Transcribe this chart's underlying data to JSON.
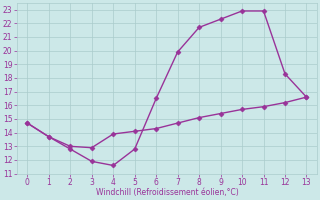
{
  "line1_x": [
    0,
    1,
    2,
    3,
    4,
    5,
    6,
    7,
    8,
    9,
    10,
    11,
    12,
    13
  ],
  "line1_y": [
    14.7,
    13.7,
    12.8,
    11.9,
    11.6,
    12.8,
    16.5,
    19.9,
    21.7,
    22.3,
    22.9,
    22.9,
    18.3,
    16.6
  ],
  "line2_x": [
    0,
    1,
    2,
    3,
    4,
    5,
    6,
    7,
    8,
    9,
    10,
    11,
    12,
    13
  ],
  "line2_y": [
    14.7,
    13.7,
    13.0,
    12.9,
    13.9,
    14.1,
    14.3,
    14.7,
    15.1,
    15.4,
    15.7,
    15.9,
    16.2,
    16.6
  ],
  "line_color": "#993399",
  "bg_color": "#cce8e8",
  "grid_color": "#aacccc",
  "xlabel": "Windchill (Refroidissement éolien,°C)",
  "xlabel_color": "#993399",
  "tick_color": "#993399",
  "xlim": [
    -0.5,
    13.5
  ],
  "ylim": [
    11,
    23.5
  ],
  "xticks": [
    0,
    1,
    2,
    3,
    4,
    5,
    6,
    7,
    8,
    9,
    10,
    11,
    12,
    13
  ],
  "yticks": [
    11,
    12,
    13,
    14,
    15,
    16,
    17,
    18,
    19,
    20,
    21,
    22,
    23
  ],
  "marker": "D",
  "markersize": 2.5,
  "linewidth": 1.0
}
